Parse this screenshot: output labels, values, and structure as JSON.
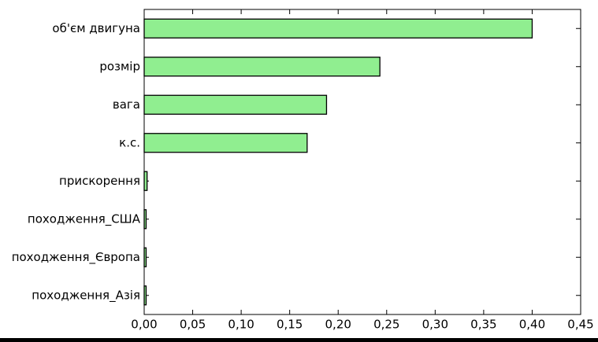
{
  "chart_data": {
    "type": "barh",
    "categories": [
      "об'єм двигуна",
      "розмір",
      "вага",
      "к.с.",
      "прискорення",
      "походження_США",
      "походження_Європа",
      "походження_Азія"
    ],
    "values": [
      0.4,
      0.243,
      0.188,
      0.168,
      0.003,
      0.002,
      0.002,
      0.002
    ],
    "color": "#90ee90",
    "xlim": [
      0,
      0.45
    ],
    "xticks": [
      {
        "value": 0,
        "label": "0,00"
      },
      {
        "value": 0.05,
        "label": "0,05"
      },
      {
        "value": 0.1,
        "label": "0,10"
      },
      {
        "value": 0.15,
        "label": "0,15"
      },
      {
        "value": 0.2,
        "label": "0,20"
      },
      {
        "value": 0.25,
        "label": "0,25"
      },
      {
        "value": 0.3,
        "label": "0,30"
      },
      {
        "value": 0.35,
        "label": "0,35"
      },
      {
        "value": 0.4,
        "label": "0,40"
      },
      {
        "value": 0.45,
        "label": "0,45"
      }
    ]
  }
}
